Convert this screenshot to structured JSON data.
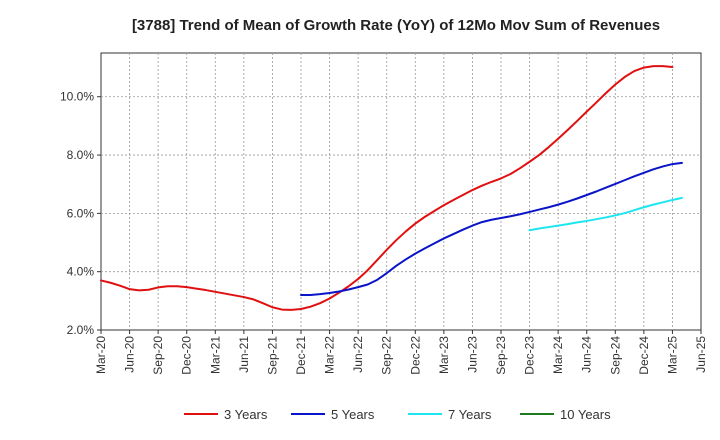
{
  "chart_data": {
    "type": "line",
    "title": "[3788]  Trend of Mean of Growth Rate (YoY) of 12Mo Mov Sum of Revenues",
    "xlabel": "",
    "ylabel": "",
    "x_ticks": [
      "Mar-20",
      "Jun-20",
      "Sep-20",
      "Dec-20",
      "Mar-21",
      "Jun-21",
      "Sep-21",
      "Dec-21",
      "Mar-22",
      "Jun-22",
      "Sep-22",
      "Dec-22",
      "Mar-23",
      "Jun-23",
      "Sep-23",
      "Dec-23",
      "Mar-24",
      "Jun-24",
      "Sep-24",
      "Dec-24",
      "Mar-25",
      "Jun-25"
    ],
    "y_ticks": [
      "2.0%",
      "4.0%",
      "6.0%",
      "8.0%",
      "10.0%"
    ],
    "ylim": [
      2.0,
      11.5
    ],
    "grid": true,
    "legend_position": "bottom",
    "series": [
      {
        "name": "3 Years",
        "color": "#e01010",
        "start_month_index": 0,
        "values": [
          3.7,
          3.62,
          3.52,
          3.4,
          3.36,
          3.38,
          3.46,
          3.5,
          3.5,
          3.47,
          3.42,
          3.37,
          3.31,
          3.25,
          3.19,
          3.13,
          3.05,
          2.92,
          2.78,
          2.7,
          2.69,
          2.72,
          2.8,
          2.92,
          3.08,
          3.28,
          3.5,
          3.75,
          4.05,
          4.4,
          4.75,
          5.08,
          5.38,
          5.65,
          5.88,
          6.08,
          6.28,
          6.46,
          6.63,
          6.8,
          6.95,
          7.08,
          7.2,
          7.35,
          7.55,
          7.77,
          8.0,
          8.27,
          8.56,
          8.86,
          9.17,
          9.49,
          9.8,
          10.12,
          10.42,
          10.68,
          10.88,
          11.0,
          11.05,
          11.05,
          11.02
        ]
      },
      {
        "name": "5 Years",
        "color": "#0a14c8",
        "start_month_index": 21,
        "values": [
          3.2,
          3.2,
          3.23,
          3.27,
          3.32,
          3.39,
          3.47,
          3.56,
          3.72,
          3.95,
          4.2,
          4.42,
          4.62,
          4.8,
          4.97,
          5.14,
          5.29,
          5.44,
          5.58,
          5.7,
          5.78,
          5.84,
          5.9,
          5.97,
          6.05,
          6.13,
          6.21,
          6.3,
          6.4,
          6.51,
          6.63,
          6.75,
          6.88,
          7.01,
          7.14,
          7.27,
          7.39,
          7.51,
          7.61,
          7.69,
          7.73
        ]
      },
      {
        "name": "7 Years",
        "color": "#1ee6f0",
        "start_month_index": 45,
        "values": [
          5.42,
          5.48,
          5.53,
          5.58,
          5.63,
          5.69,
          5.74,
          5.8,
          5.86,
          5.93,
          6.01,
          6.11,
          6.21,
          6.3,
          6.38,
          6.46,
          6.53
        ]
      },
      {
        "name": "10 Years",
        "color": "#1e7a1e",
        "start_month_index": null,
        "values": []
      }
    ]
  }
}
